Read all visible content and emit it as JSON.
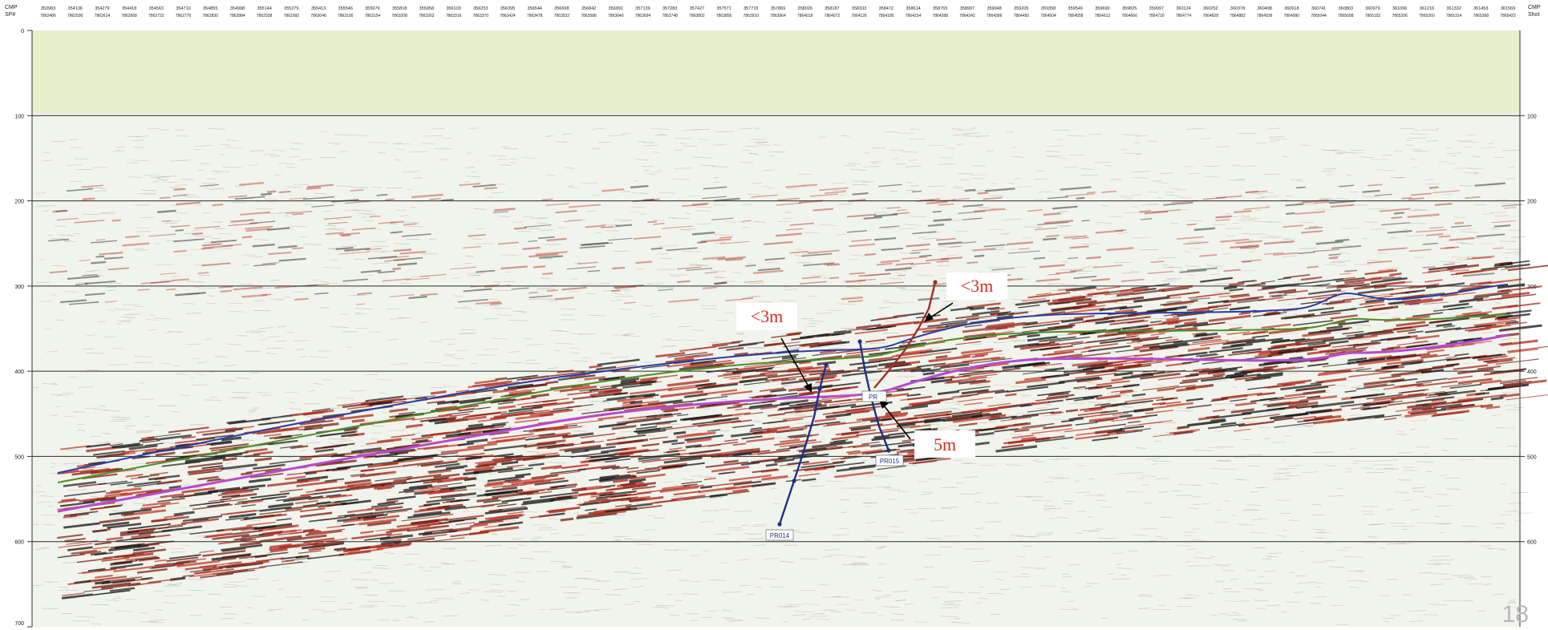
{
  "header": {
    "left_label_top": "CMP",
    "left_label_bottom": "SP#",
    "right_label_top": "CMP",
    "right_label_bottom": "Shot",
    "cmp_numbers": [
      "353983",
      "354136",
      "354279",
      "354418",
      "354563",
      "354710",
      "354855",
      "354998",
      "355144",
      "355279",
      "355413",
      "355546",
      "355679",
      "355818",
      "355958",
      "356103",
      "356253",
      "356395",
      "356544",
      "356698",
      "356842",
      "356991",
      "357139",
      "357283",
      "357427",
      "357571",
      "357715",
      "357869",
      "358026",
      "358187",
      "358333",
      "358472",
      "358614",
      "358765",
      "358907",
      "359048",
      "359205",
      "359358",
      "359546",
      "359690",
      "359825",
      "359997",
      "360124",
      "360252",
      "360378",
      "360498",
      "360618",
      "360741",
      "360863",
      "360979",
      "361096",
      "361216",
      "361332",
      "361453",
      "361569"
    ],
    "shot_numbers": [
      "7862486",
      "7862590",
      "7862614",
      "7862668",
      "7862722",
      "7862776",
      "7862830",
      "7862884",
      "7862938",
      "7862992",
      "7863046",
      "7863100",
      "7863154",
      "7863208",
      "7863262",
      "7863316",
      "7863370",
      "7863424",
      "7863478",
      "7863532",
      "7863586",
      "7863640",
      "7863694",
      "7863748",
      "7863802",
      "7863856",
      "7863910",
      "7863964",
      "7864018",
      "7864072",
      "7864126",
      "7864180",
      "7864234",
      "7864288",
      "7864342",
      "7864396",
      "7864450",
      "7864504",
      "7864558",
      "7864612",
      "7864666",
      "7864720",
      "7864774",
      "7864828",
      "7864882",
      "7864936",
      "7864990",
      "7865044",
      "7865098",
      "7865152",
      "7865206",
      "7865260",
      "7865314",
      "7865368",
      "7865422"
    ]
  },
  "time_axis": {
    "ticks": [
      "0",
      "100",
      "200",
      "300",
      "400",
      "500",
      "600",
      "700"
    ],
    "right_ticks": [
      "100",
      "200",
      "300",
      "400",
      "500",
      "600"
    ]
  },
  "annotations": {
    "label_left": "<3m",
    "label_right_top": "<3m",
    "label_bottom": "5m"
  },
  "wells": {
    "well_1": "PR014",
    "well_2": "PR015",
    "well_2_top": "PR"
  },
  "page_number": "18",
  "colors": {
    "water_column": "#e6efcc",
    "horizon_blue": "#2c3aa6",
    "horizon_green": "#4c8f24",
    "horizon_magenta": "#b84ad0",
    "well_blue": "#1e2f86",
    "fault_red": "#a23020",
    "annotation_red": "#d6301c"
  }
}
